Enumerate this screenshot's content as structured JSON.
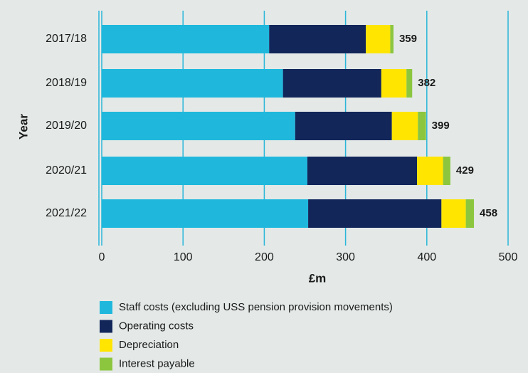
{
  "chart_data": {
    "type": "stacked-barh",
    "xlabel": "£m",
    "ylabel": "Year",
    "categories": [
      "2017/18",
      "2018/19",
      "2019/20",
      "2020/21",
      "2021/22"
    ],
    "series": [
      {
        "name": "Staff costs (excluding USS pension provision movements)",
        "color": "#1fb8dc",
        "values": [
          206,
          223,
          238,
          253,
          254
        ]
      },
      {
        "name": "Operating costs",
        "color": "#12265a",
        "values": [
          119,
          121,
          119,
          135,
          164
        ]
      },
      {
        "name": "Depreciation",
        "color": "#ffe500",
        "values": [
          30,
          31,
          32,
          32,
          30
        ]
      },
      {
        "name": "Interest payable",
        "color": "#8cc63f",
        "values": [
          4,
          7,
          10,
          9,
          10
        ]
      }
    ],
    "totals": [
      359,
      382,
      399,
      429,
      458
    ],
    "xlim": [
      0,
      500
    ],
    "xticks": [
      0,
      100,
      200,
      300,
      400,
      500
    ],
    "grid": true,
    "grid_color": "#29b6d8"
  }
}
